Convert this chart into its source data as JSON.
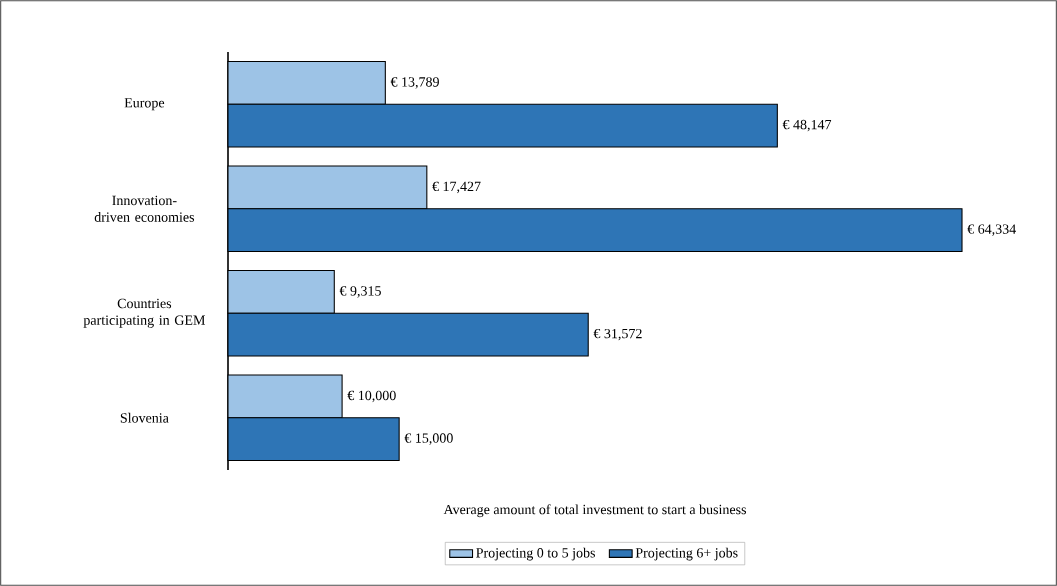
{
  "chart_data": {
    "type": "bar",
    "orientation": "horizontal",
    "xlabel": "Average  amount of total investment to start a business",
    "categories": [
      "Europe",
      "Innovation-driven economies",
      "Countries participating in GEM",
      "Slovenia"
    ],
    "series": [
      {
        "name": "Projecting 0 to 5 jobs",
        "color": "#9dc3e6",
        "values": [
          13789,
          17427,
          9315,
          10000
        ],
        "value_labels": [
          "€ 13,789",
          "€ 17,427",
          "€ 9,315",
          "€ 10,000"
        ]
      },
      {
        "name": "Projecting 6+ jobs",
        "color": "#2e75b6",
        "values": [
          48147,
          64334,
          31572,
          15000
        ],
        "value_labels": [
          "€ 48,147",
          "€ 64,334",
          "€ 31,572",
          "€ 15,000"
        ]
      }
    ],
    "legend": "bottom"
  }
}
